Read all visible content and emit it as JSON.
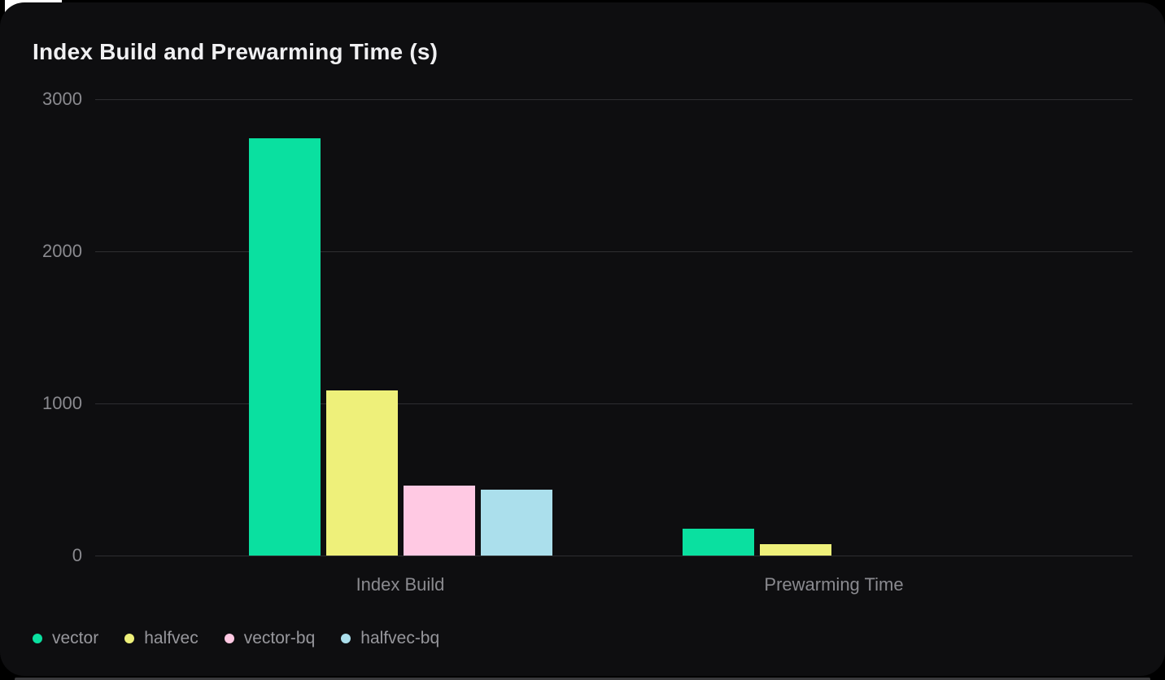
{
  "chart_data": {
    "type": "bar",
    "title": "Index Build and Prewarming Time (s)",
    "categories": [
      "Index Build",
      "Prewarming Time"
    ],
    "series": [
      {
        "name": "vector",
        "color": "#0ae0a0",
        "values": [
          2745,
          175
        ]
      },
      {
        "name": "halfvec",
        "color": "#eef07a",
        "values": [
          1085,
          75
        ]
      },
      {
        "name": "vector-bq",
        "color": "#ffc9e3",
        "values": [
          460,
          0
        ]
      },
      {
        "name": "halfvec-bq",
        "color": "#abdfec",
        "values": [
          435,
          0
        ]
      }
    ],
    "ylim": [
      0,
      3000
    ],
    "yticks": [
      0,
      1000,
      2000,
      3000
    ],
    "xlabel": "",
    "ylabel": "",
    "grid": true,
    "legend_position": "bottom-left"
  },
  "colors": {
    "page_background": "#000000",
    "card_background": "#0e0e10",
    "gridline": "#2e2e31",
    "axis_text": "#8a8a8f",
    "title_text": "#f0f0f2",
    "legend_text": "#97979c",
    "page_corner": "#ffffff",
    "bottom_edge": "#3a3a3c"
  }
}
